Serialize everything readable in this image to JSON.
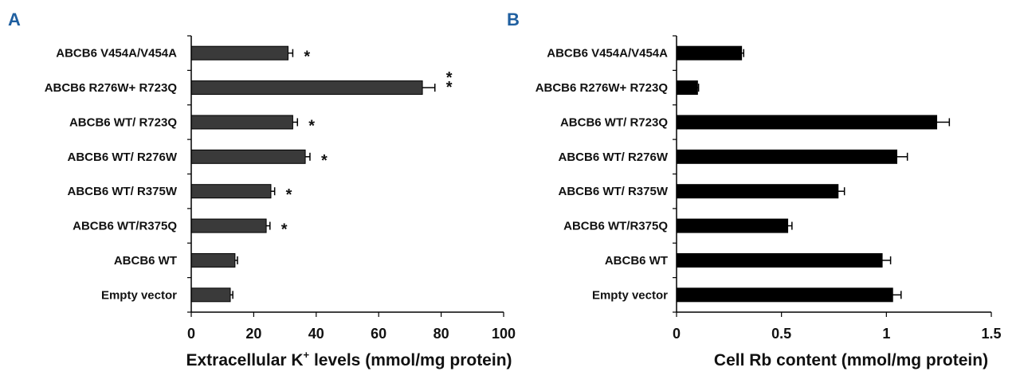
{
  "figure": {
    "panel_color": "#1f5fa0",
    "bar_colors": [
      "#3a3a3a",
      "#000000"
    ]
  },
  "chart_data": [
    {
      "panel": "A",
      "type": "bar",
      "orientation": "horizontal",
      "categories": [
        "ABCB6 V454A/V454A",
        "ABCB6 R276W+ R723Q",
        "ABCB6 WT/ R723Q",
        "ABCB6  WT/ R276W",
        "ABCB6  WT/ R375W",
        "ABCB6 WT/R375Q",
        "ABCB6  WT",
        "Empty  vector"
      ],
      "values": [
        31,
        74,
        32.5,
        36.5,
        25.5,
        24,
        14,
        12.5
      ],
      "errors": [
        1.5,
        4,
        1.5,
        1.5,
        1.2,
        1.2,
        0.8,
        0.8
      ],
      "significance": [
        "*",
        "*\n*",
        "*",
        "*",
        "*",
        "*",
        "",
        ""
      ],
      "xlabel": "Extracellular K",
      "xlabel_sup": "+",
      "xlabel_suffix": " levels (mmol/mg protein)",
      "xlim": [
        0,
        100
      ],
      "xticks": [
        0,
        20,
        40,
        60,
        80,
        100
      ],
      "xtick_labels": [
        "0",
        "20",
        "40",
        "60",
        "80",
        "100"
      ]
    },
    {
      "panel": "B",
      "type": "bar",
      "orientation": "horizontal",
      "categories": [
        "ABCB6 V454A/V454A",
        "ABCB6 R276W+ R723Q",
        "ABCB6 WT/ R723Q",
        "ABCB6  WT/ R276W",
        "ABCB6  WT/ R375W",
        "ABCB6 WT/R375Q",
        "ABCB6  WT",
        "Empty  vector"
      ],
      "values": [
        0.31,
        0.1,
        1.24,
        1.05,
        0.77,
        0.53,
        0.98,
        1.03
      ],
      "errors": [
        0.01,
        0.005,
        0.06,
        0.05,
        0.03,
        0.02,
        0.04,
        0.04
      ],
      "significance": [
        "",
        "",
        "",
        "",
        "",
        "",
        "",
        ""
      ],
      "xlabel": "Cell Rb content (mmol/mg protein)",
      "xlim": [
        0,
        1.5
      ],
      "xticks": [
        0,
        0.5,
        1,
        1.5
      ],
      "xtick_labels": [
        "0",
        "0.5",
        "1",
        "1.5"
      ]
    }
  ]
}
